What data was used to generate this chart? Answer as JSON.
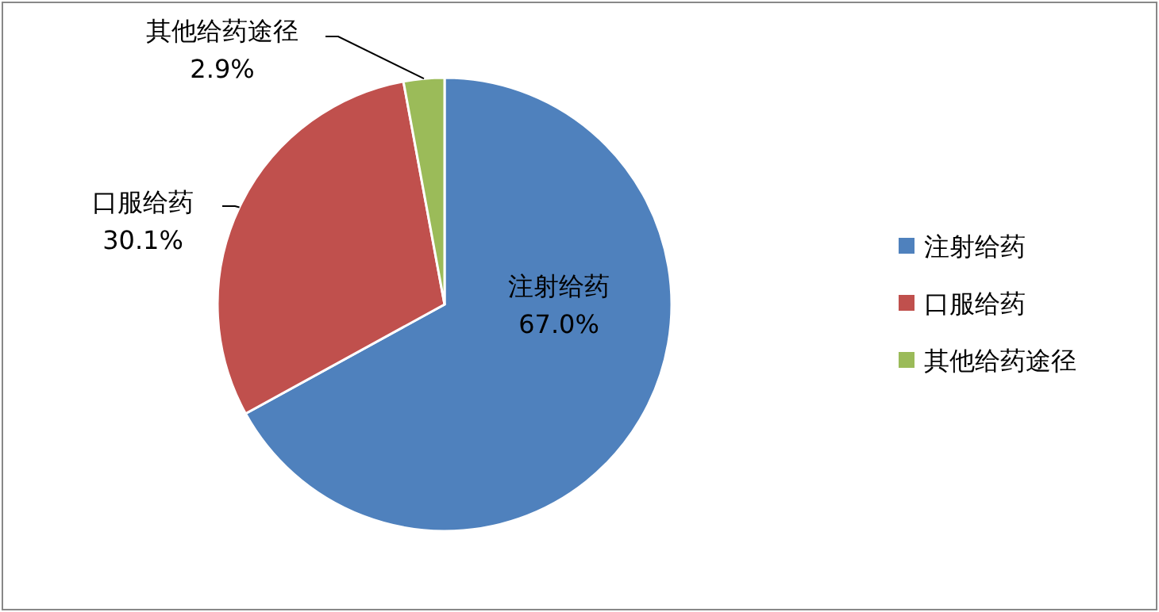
{
  "chart_data": {
    "type": "pie",
    "categories": [
      "注射给药",
      "口服给药",
      "其他给药途径"
    ],
    "values": [
      67.0,
      30.1,
      2.9
    ],
    "colors": [
      "#4f81bd",
      "#c0504d",
      "#9bbb59"
    ],
    "value_labels": [
      "67.0%",
      "30.1%",
      "2.9%"
    ],
    "legend": "right"
  }
}
